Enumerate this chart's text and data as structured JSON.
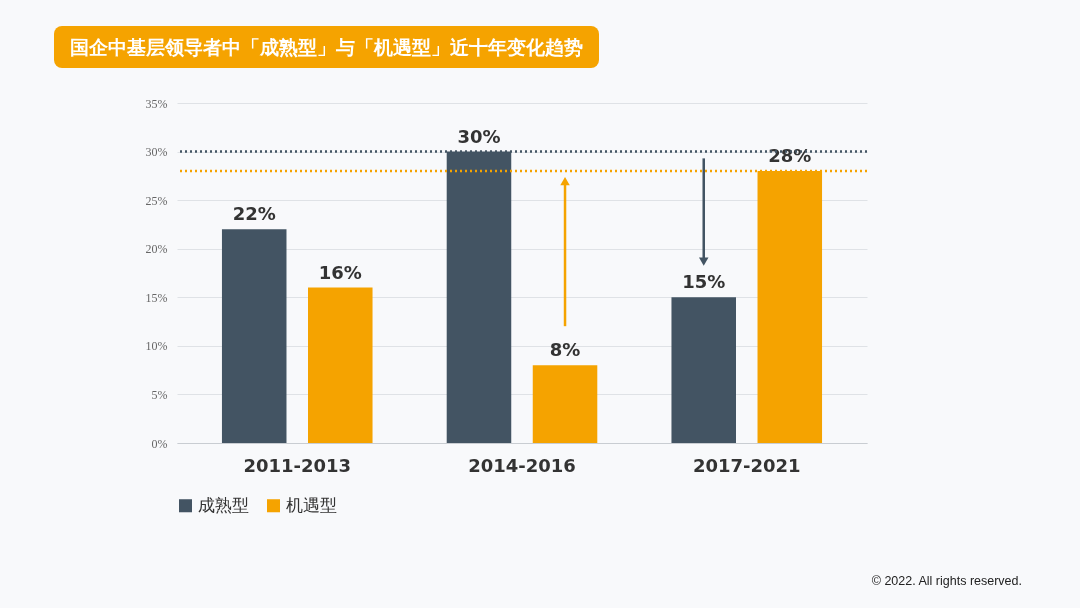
{
  "chart_data": {
    "type": "bar",
    "title": "国企中基层领导者中「成熟型」与「机遇型」近十年变化趋势",
    "categories": [
      "2011-2013",
      "2014-2016",
      "2017-2021"
    ],
    "series": [
      {
        "name": "成熟型",
        "color": "#435463",
        "values": [
          22,
          30,
          15
        ],
        "value_labels": [
          "22%",
          "30%",
          "15%"
        ]
      },
      {
        "name": "机遇型",
        "color": "#f5a300",
        "values": [
          16,
          8,
          28
        ],
        "value_labels": [
          "16%",
          "8%",
          "28%"
        ]
      }
    ],
    "ylim": [
      0,
      35
    ],
    "yticks": [
      {
        "value": 0,
        "label": "0%"
      },
      {
        "value": 5,
        "label": "5%"
      },
      {
        "value": 10,
        "label": "10%"
      },
      {
        "value": 15,
        "label": "15%"
      },
      {
        "value": 20,
        "label": "20%"
      },
      {
        "value": 25,
        "label": "25%"
      },
      {
        "value": 30,
        "label": "30%"
      },
      {
        "value": 35,
        "label": "35%"
      }
    ],
    "grid": "y",
    "legend": "bottom",
    "ref_lines": [
      {
        "axis": "y",
        "value": 30,
        "color": "#435463",
        "line_style": "dotted"
      },
      {
        "axis": "y",
        "value": 28,
        "color": "#f5a300",
        "line_style": "dotted"
      }
    ],
    "annotations": [
      "© 2022. All rights reserved."
    ]
  }
}
